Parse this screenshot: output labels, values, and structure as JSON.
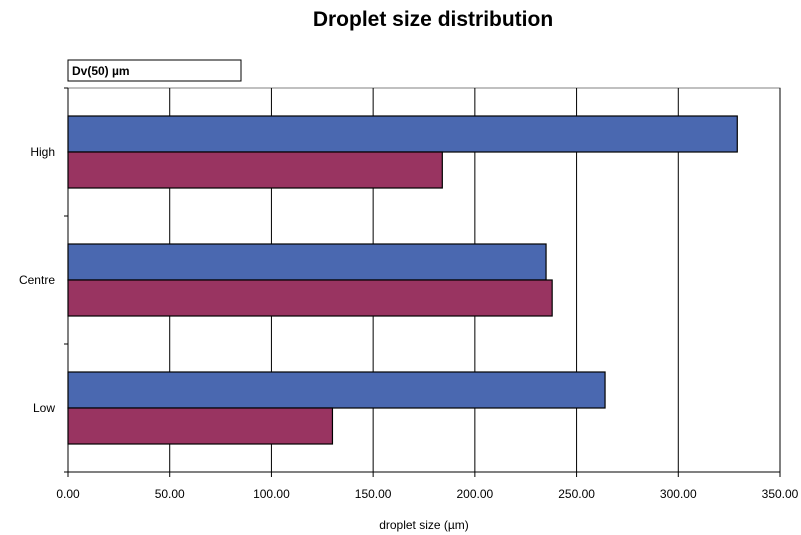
{
  "chart_data": {
    "type": "bar",
    "orientation": "horizontal",
    "title": "Droplet size distribution",
    "subtitle_box": "Dv(50) µm",
    "xlabel": "droplet size (µm)",
    "ylabel": "",
    "xlim": [
      0,
      350
    ],
    "x_ticks": [
      "0.00",
      "50.00",
      "100.00",
      "150.00",
      "200.00",
      "250.00",
      "300.00",
      "350.00"
    ],
    "categories": [
      "High",
      "Centre",
      "Low"
    ],
    "series": [
      {
        "values": [
          329,
          235,
          264
        ],
        "color": "#4a68b0"
      },
      {
        "values": [
          184,
          238,
          130
        ],
        "color": "#993461"
      }
    ],
    "grid": "vertical",
    "legend": "none"
  }
}
